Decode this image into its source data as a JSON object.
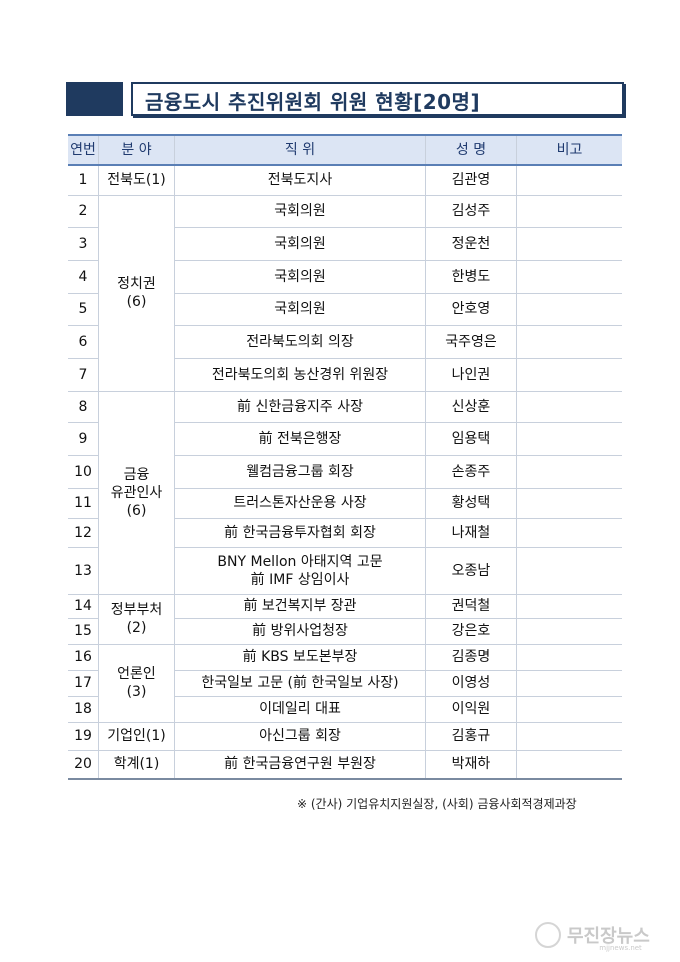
{
  "title": "금융도시 추진위원회 위원 현황[20명]",
  "table": {
    "headers": [
      "연번",
      "분 야",
      "직 위",
      "성 명",
      "비고"
    ],
    "groups": [
      {
        "field": "전북도(1)",
        "rows": [
          {
            "no": "1",
            "position": "전북도지사",
            "name": "김관영",
            "note": ""
          }
        ]
      },
      {
        "field": "정치권\n(6)",
        "rows": [
          {
            "no": "2",
            "position": "국회의원",
            "name": "김성주",
            "note": ""
          },
          {
            "no": "3",
            "position": "국회의원",
            "name": "정운천",
            "note": ""
          },
          {
            "no": "4",
            "position": "국회의원",
            "name": "한병도",
            "note": ""
          },
          {
            "no": "5",
            "position": "국회의원",
            "name": "안호영",
            "note": ""
          },
          {
            "no": "6",
            "position": "전라북도의회 의장",
            "name": "국주영은",
            "note": ""
          },
          {
            "no": "7",
            "position": "전라북도의회 농산경위 위원장",
            "name": "나인권",
            "note": ""
          }
        ]
      },
      {
        "field": "금융\n유관인사\n(6)",
        "rows": [
          {
            "no": "8",
            "position": "前 신한금융지주 사장",
            "name": "신상훈",
            "note": ""
          },
          {
            "no": "9",
            "position": "前 전북은행장",
            "name": "임용택",
            "note": ""
          },
          {
            "no": "10",
            "position": "웰컴금융그룹 회장",
            "name": "손종주",
            "note": ""
          },
          {
            "no": "11",
            "position": "트러스톤자산운용 사장",
            "name": "황성택",
            "note": ""
          },
          {
            "no": "12",
            "position": "前 한국금융투자협회 회장",
            "name": "나재철",
            "note": ""
          },
          {
            "no": "13",
            "position": "BNY Mellon 아태지역 고문\n前 IMF 상임이사",
            "name": "오종남",
            "note": ""
          }
        ]
      },
      {
        "field": "정부부처\n(2)",
        "rows": [
          {
            "no": "14",
            "position": "前 보건복지부 장관",
            "name": "권덕철",
            "note": ""
          },
          {
            "no": "15",
            "position": "前 방위사업청장",
            "name": "강은호",
            "note": ""
          }
        ]
      },
      {
        "field": "언론인\n(3)",
        "rows": [
          {
            "no": "16",
            "position": "前 KBS 보도본부장",
            "name": "김종명",
            "note": ""
          },
          {
            "no": "17",
            "position": "한국일보 고문 (前 한국일보 사장)",
            "name": "이영성",
            "note": ""
          },
          {
            "no": "18",
            "position": "이데일리 대표",
            "name": "이익원",
            "note": ""
          }
        ]
      },
      {
        "field": "기업인(1)",
        "rows": [
          {
            "no": "19",
            "position": "아신그룹 회장",
            "name": "김홍규",
            "note": ""
          }
        ]
      },
      {
        "field": "학계(1)",
        "rows": [
          {
            "no": "20",
            "position": "前 한국금융연구원 부원장",
            "name": "박재하",
            "note": ""
          }
        ]
      }
    ]
  },
  "footnote": "※ (간사) 기업유치지원실장, (사회) 금융사회적경제과장",
  "watermark": {
    "text": "무진장뉴스",
    "sub": "mjjnews.net"
  },
  "colors": {
    "title": "#1f3a5f",
    "header_bg": "#dce5f4"
  }
}
